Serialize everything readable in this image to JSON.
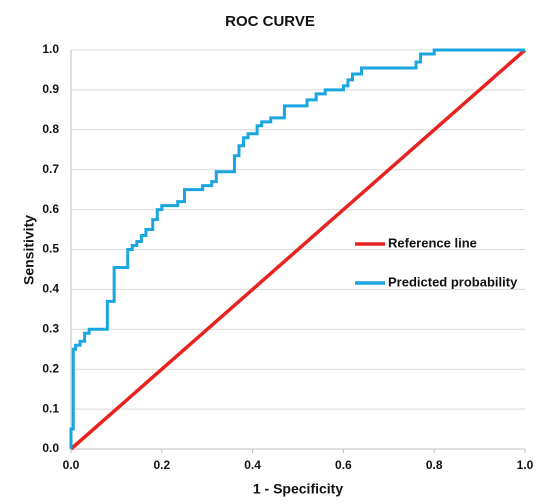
{
  "chart_data": {
    "type": "line",
    "title": "ROC CURVE",
    "x_label": "1 - Specificity",
    "y_label": "Sensitivity",
    "xlim": [
      0,
      1
    ],
    "ylim": [
      0,
      1
    ],
    "xticks": [
      {
        "value": 0,
        "label": "0.0"
      },
      0.2,
      0.4,
      0.6,
      0.8,
      {
        "value": 1,
        "label": "1.0"
      }
    ],
    "yticks": [
      {
        "value": 0,
        "label": "0.0"
      },
      0.1,
      0.2,
      0.3,
      0.4,
      0.5,
      0.6,
      0.7,
      0.8,
      0.9,
      {
        "value": 1,
        "label": "1.0"
      }
    ],
    "grid": true,
    "legend": "right",
    "series": [
      {
        "name": "Reference line",
        "color": "#e8231f",
        "x": [
          0,
          1
        ],
        "values": [
          0,
          1
        ]
      },
      {
        "name": "Predicted probability",
        "color": "#1aa6e0",
        "x": [
          0,
          0,
          0.005,
          0.005,
          0.01,
          0.01,
          0.02,
          0.02,
          0.03,
          0.03,
          0.04,
          0.04,
          0.08,
          0.08,
          0.095,
          0.095,
          0.125,
          0.125,
          0.135,
          0.135,
          0.145,
          0.145,
          0.155,
          0.155,
          0.165,
          0.165,
          0.18,
          0.18,
          0.19,
          0.19,
          0.2,
          0.2,
          0.235,
          0.235,
          0.25,
          0.25,
          0.29,
          0.29,
          0.31,
          0.31,
          0.32,
          0.32,
          0.36,
          0.36,
          0.37,
          0.37,
          0.38,
          0.38,
          0.39,
          0.39,
          0.41,
          0.41,
          0.42,
          0.42,
          0.44,
          0.44,
          0.47,
          0.47,
          0.52,
          0.52,
          0.54,
          0.54,
          0.56,
          0.56,
          0.6,
          0.6,
          0.61,
          0.61,
          0.62,
          0.62,
          0.64,
          0.64,
          0.76,
          0.76,
          0.77,
          0.77,
          0.8,
          0.8,
          1
        ],
        "values": [
          0,
          0.05,
          0.05,
          0.25,
          0.25,
          0.26,
          0.26,
          0.27,
          0.27,
          0.29,
          0.29,
          0.3,
          0.3,
          0.37,
          0.37,
          0.455,
          0.455,
          0.5,
          0.5,
          0.51,
          0.51,
          0.52,
          0.52,
          0.535,
          0.535,
          0.55,
          0.55,
          0.575,
          0.575,
          0.6,
          0.6,
          0.61,
          0.61,
          0.62,
          0.62,
          0.65,
          0.65,
          0.66,
          0.66,
          0.67,
          0.67,
          0.695,
          0.695,
          0.735,
          0.735,
          0.76,
          0.76,
          0.78,
          0.78,
          0.79,
          0.79,
          0.81,
          0.81,
          0.82,
          0.82,
          0.83,
          0.83,
          0.86,
          0.86,
          0.875,
          0.875,
          0.89,
          0.89,
          0.9,
          0.9,
          0.91,
          0.91,
          0.925,
          0.925,
          0.94,
          0.94,
          0.955,
          0.955,
          0.97,
          0.97,
          0.99,
          0.99,
          1,
          1
        ]
      }
    ]
  }
}
